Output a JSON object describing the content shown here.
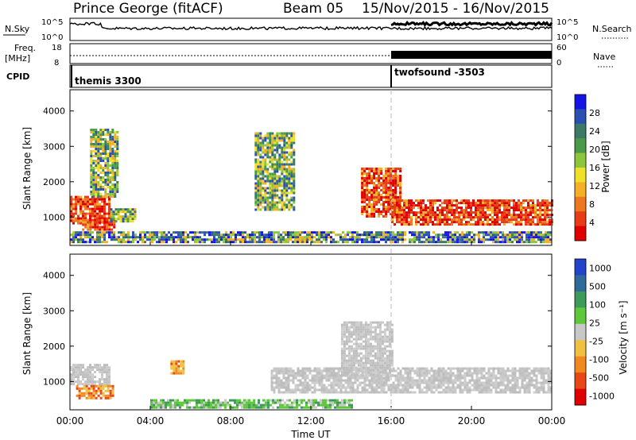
{
  "header": {
    "station": "Prince George (fitACF)",
    "beam": "Beam 05",
    "date_range": "15/Nov/2015 - 16/Nov/2015"
  },
  "top_panels": {
    "nsky_label": "N.Sky",
    "nsky_ticks": [
      "10^5",
      "10^0"
    ],
    "nsearch_label": "N.Search",
    "nsearch_ticks": [
      "10^5",
      "10^0"
    ],
    "freq_label": "Freq.",
    "freq_unit": "[MHz]",
    "freq_ticks": [
      "18",
      "8"
    ],
    "nave_label": "Nave",
    "nave_ticks": [
      "60",
      "0"
    ],
    "cpid_label": "CPID",
    "cpid_modes": [
      {
        "name": "themis 3300",
        "start_hour": 0
      },
      {
        "name": "twofsound -3503",
        "start_hour": 16
      }
    ]
  },
  "chart_data": [
    {
      "type": "heatmap",
      "name": "power",
      "title": "",
      "xlabel": "",
      "ylabel": "Slant Range [km]",
      "xlim": [
        0,
        24
      ],
      "ylim": [
        200,
        4600
      ],
      "yticks": [
        "1000",
        "2000",
        "3000",
        "4000"
      ],
      "colorbar": {
        "label": "Power [dB]",
        "ticks": [
          "4",
          "8",
          "12",
          "16",
          "20",
          "24",
          "28"
        ],
        "colors": [
          "#1414e6",
          "#2c4fb4",
          "#3d7a66",
          "#4a9a4a",
          "#8cc63c",
          "#f0e02a",
          "#f4b026",
          "#ee7820",
          "#e63c18",
          "#e10000"
        ]
      },
      "regions": [
        {
          "x": [
            0.0,
            2.0
          ],
          "y": [
            800,
            1600
          ],
          "level": "high"
        },
        {
          "x": [
            0.6,
            2.2
          ],
          "y": [
            650,
            950
          ],
          "level": "high"
        },
        {
          "x": [
            1.0,
            2.4
          ],
          "y": [
            1600,
            3500
          ],
          "level": "medium"
        },
        {
          "x": [
            2.0,
            3.2
          ],
          "y": [
            900,
            1250
          ],
          "level": "medium"
        },
        {
          "x": [
            9.2,
            11.2
          ],
          "y": [
            1200,
            3400
          ],
          "level": "medium"
        },
        {
          "x": [
            14.5,
            16.5
          ],
          "y": [
            1000,
            2400
          ],
          "level": "high"
        },
        {
          "x": [
            16.0,
            24.0
          ],
          "y": [
            800,
            1500
          ],
          "level": "high"
        },
        {
          "x": [
            0.0,
            24.0
          ],
          "y": [
            300,
            600
          ],
          "level": "low"
        }
      ]
    },
    {
      "type": "heatmap",
      "name": "velocity",
      "title": "",
      "xlabel": "Time UT",
      "ylabel": "Slant Range [km]",
      "xlim": [
        0,
        24
      ],
      "ylim": [
        200,
        4600
      ],
      "xticks": [
        "00:00",
        "04:00",
        "08:00",
        "12:00",
        "16:00",
        "20:00",
        "00:00"
      ],
      "yticks": [
        "1000",
        "2000",
        "3000",
        "4000"
      ],
      "colorbar": {
        "label": "Velocity [m s⁻¹]",
        "ticks": [
          "1000",
          "500",
          "100",
          "25",
          "-25",
          "-100",
          "-500",
          "-1000"
        ],
        "colors": [
          "#2244cc",
          "#2e6a9a",
          "#3d9a5a",
          "#5ec83a",
          "#c8c8c8",
          "#f0c040",
          "#f08a20",
          "#e84818",
          "#e00000"
        ]
      },
      "regions": [
        {
          "x": [
            0.0,
            2.0
          ],
          "y": [
            900,
            1500
          ],
          "level": "ground"
        },
        {
          "x": [
            0.3,
            2.2
          ],
          "y": [
            500,
            900
          ],
          "level": "negative"
        },
        {
          "x": [
            5.0,
            5.6
          ],
          "y": [
            1200,
            1600
          ],
          "level": "negative"
        },
        {
          "x": [
            10.0,
            24.0
          ],
          "y": [
            700,
            1400
          ],
          "level": "ground"
        },
        {
          "x": [
            13.5,
            16.0
          ],
          "y": [
            1200,
            2700
          ],
          "level": "ground"
        },
        {
          "x": [
            4.0,
            14.0
          ],
          "y": [
            250,
            500
          ],
          "level": "positive"
        }
      ]
    }
  ],
  "timeseries": {
    "nsky_value": 0.55,
    "nsearch_value_after16": 0.75,
    "freq_value": 10.5,
    "nave_after16": 48
  }
}
